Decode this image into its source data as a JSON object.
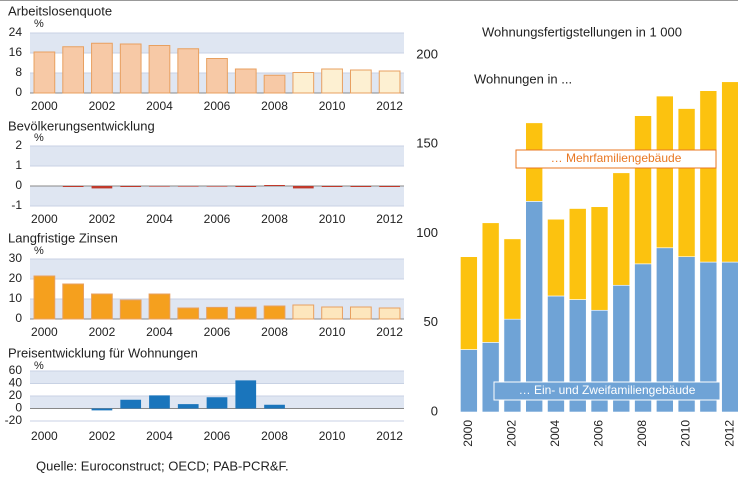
{
  "chart_data": [
    {
      "type": "bar",
      "title": "Arbeitslosenquote",
      "unit": "%",
      "categories": [
        "2000",
        null,
        "2002",
        null,
        "2004",
        null,
        "2006",
        null,
        "2008",
        null,
        "2010",
        null,
        "2012"
      ],
      "values": [
        16.4,
        18.5,
        19.9,
        19.6,
        19.0,
        17.7,
        13.8,
        9.6,
        7.1,
        8.2,
        9.6,
        9.2,
        8.8
      ],
      "colors": [
        "#f7c9a6",
        "#f7c9a6",
        "#f7c9a6",
        "#f7c9a6",
        "#f7c9a6",
        "#f7c9a6",
        "#f7c9a6",
        "#f7c9a6",
        "#f7c9a6",
        "#fdf0d2",
        "#fdf0d2",
        "#fdf0d2",
        "#fdf0d2"
      ],
      "ylim": [
        0,
        24
      ],
      "yticks": [
        0,
        8,
        16,
        24
      ]
    },
    {
      "type": "bar",
      "title": "Bevölkerungsentwicklung",
      "unit": "%",
      "categories": [
        "2000",
        null,
        "2002",
        null,
        "2004",
        null,
        "2006",
        null,
        "2008",
        null,
        "2010",
        null,
        "2012"
      ],
      "values": [
        null,
        -0.05,
        -0.12,
        -0.05,
        -0.03,
        -0.03,
        -0.03,
        -0.05,
        0.05,
        -0.12,
        -0.05,
        -0.05,
        -0.05
      ],
      "colors": [
        "#c0392b",
        "#c0392b",
        "#c0392b",
        "#c0392b",
        "#c0392b",
        "#c0392b",
        "#c0392b",
        "#c0392b",
        "#c0392b",
        "#c0392b",
        "#c0392b",
        "#c0392b",
        "#c0392b"
      ],
      "ylim": [
        -1,
        2
      ],
      "yticks": [
        -1,
        0,
        1,
        2
      ]
    },
    {
      "type": "bar",
      "title": "Langfristige Zinsen",
      "unit": "%",
      "categories": [
        "2000",
        null,
        "2002",
        null,
        "2004",
        null,
        "2006",
        null,
        "2008",
        null,
        "2010",
        null,
        "2012"
      ],
      "values": [
        21.5,
        17.5,
        12.5,
        9.5,
        12.5,
        5.5,
        5.8,
        5.9,
        6.5,
        7.0,
        6.0,
        6.0,
        5.5
      ],
      "colors": [
        "#f5a01e",
        "#f5a01e",
        "#f5a01e",
        "#f5a01e",
        "#f5a01e",
        "#f5a01e",
        "#f5a01e",
        "#f5a01e",
        "#f5a01e",
        "#fde6bd",
        "#fde6bd",
        "#fde6bd",
        "#fde6bd"
      ],
      "ylim": [
        0,
        30
      ],
      "yticks": [
        0,
        10,
        20,
        30
      ]
    },
    {
      "type": "bar",
      "title": "Preisentwicklung für Wohnungen",
      "unit": "%",
      "categories": [
        "2000",
        null,
        "2002",
        null,
        "2004",
        null,
        "2006",
        null,
        "2008",
        null,
        "2010",
        null,
        "2012"
      ],
      "values": [
        null,
        null,
        -3,
        14,
        21,
        7,
        18,
        45,
        6,
        null,
        null,
        null,
        null
      ],
      "colors": [
        "#1a75bc",
        "#1a75bc",
        "#1a75bc",
        "#1a75bc",
        "#1a75bc",
        "#1a75bc",
        "#1a75bc",
        "#1a75bc",
        "#1a75bc",
        "#1a75bc",
        "#1a75bc",
        "#1a75bc",
        "#1a75bc"
      ],
      "ylim": [
        -20,
        60
      ],
      "yticks": [
        -20,
        0,
        20,
        40,
        60
      ]
    },
    {
      "type": "stacked_bar",
      "title": "Wohnungsfertigstellungen in 1 000",
      "annotation": "Wohnungen in ...",
      "categories": [
        "2000",
        null,
        "2002",
        null,
        "2004",
        null,
        "2006",
        null,
        "2008",
        null,
        "2010",
        null,
        "2012"
      ],
      "series": [
        {
          "name": "… Ein- und Zweifamiliengebäude",
          "color": "#6fa3d6",
          "values": [
            35,
            39,
            52,
            118,
            65,
            63,
            57,
            71,
            83,
            92,
            87,
            84,
            84
          ]
        },
        {
          "name": "… Mehrfamiliengebäude",
          "color": "#fcc20f",
          "values": [
            52,
            67,
            45,
            44,
            43,
            51,
            58,
            63,
            83,
            85,
            83,
            96,
            101
          ]
        }
      ],
      "ylim": [
        0,
        200
      ],
      "yticks": [
        0,
        50,
        100,
        150,
        200
      ]
    }
  ],
  "source": "Quelle: Euroconstruct; OECD; PAB-PCR&F."
}
